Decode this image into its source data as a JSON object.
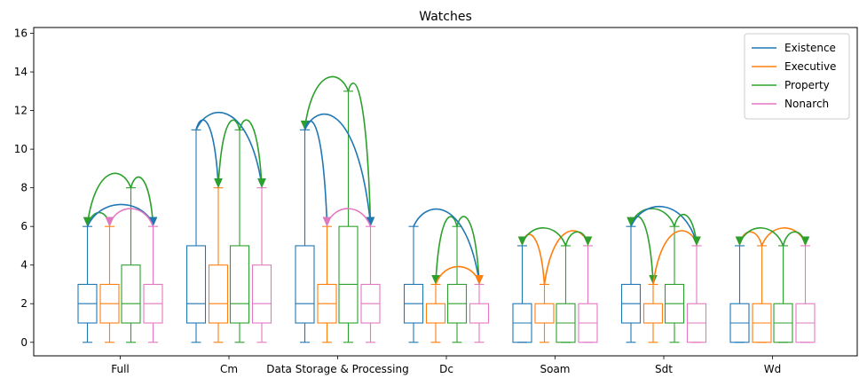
{
  "chart_data": {
    "type": "box",
    "title": "Watches",
    "xlabel": "",
    "ylabel": "",
    "ylim": [
      -0.7,
      16.3
    ],
    "yticks": [
      0,
      2,
      4,
      6,
      8,
      10,
      12,
      14,
      16
    ],
    "categories": [
      "Full",
      "Cm",
      "Data Storage & Processing",
      "Dc",
      "Soam",
      "Sdt",
      "Wd"
    ],
    "legend_position": "top-right",
    "series": [
      {
        "name": "Existence",
        "color": "#1f77b4",
        "boxes": [
          {
            "whislo": 0,
            "q1": 1,
            "med": 2,
            "q3": 3,
            "whishi": 6
          },
          {
            "whislo": 0,
            "q1": 1,
            "med": 2,
            "q3": 5,
            "whishi": 11
          },
          {
            "whislo": 0,
            "q1": 1,
            "med": 2,
            "q3": 5,
            "whishi": 11
          },
          {
            "whislo": 0,
            "q1": 1,
            "med": 2,
            "q3": 3,
            "whishi": 6
          },
          {
            "whislo": 0,
            "q1": 0,
            "med": 1,
            "q3": 2,
            "whishi": 5
          },
          {
            "whislo": 0,
            "q1": 1,
            "med": 2,
            "q3": 3,
            "whishi": 6
          },
          {
            "whislo": 0,
            "q1": 0,
            "med": 1,
            "q3": 2,
            "whishi": 5
          }
        ]
      },
      {
        "name": "Executive",
        "color": "#ff7f0e",
        "boxes": [
          {
            "whislo": 0,
            "q1": 1,
            "med": 2,
            "q3": 3,
            "whishi": 6
          },
          {
            "whislo": 0,
            "q1": 1,
            "med": 2,
            "q3": 4,
            "whishi": 8
          },
          {
            "whislo": 0,
            "q1": 1,
            "med": 2,
            "q3": 3,
            "whishi": 6
          },
          {
            "whislo": 0,
            "q1": 1,
            "med": 1,
            "q3": 2,
            "whishi": 3
          },
          {
            "whislo": 0,
            "q1": 1,
            "med": 1,
            "q3": 2,
            "whishi": 3
          },
          {
            "whislo": 0,
            "q1": 1,
            "med": 1,
            "q3": 2,
            "whishi": 3
          },
          {
            "whislo": 0,
            "q1": 0,
            "med": 1,
            "q3": 2,
            "whishi": 5
          }
        ]
      },
      {
        "name": "Property",
        "color": "#2ca02c",
        "boxes": [
          {
            "whislo": 0,
            "q1": 1,
            "med": 2,
            "q3": 4,
            "whishi": 8
          },
          {
            "whislo": 0,
            "q1": 1,
            "med": 2,
            "q3": 5,
            "whishi": 11
          },
          {
            "whislo": 0,
            "q1": 1,
            "med": 3,
            "q3": 6,
            "whishi": 13
          },
          {
            "whislo": 0,
            "q1": 1,
            "med": 2,
            "q3": 3,
            "whishi": 6
          },
          {
            "whislo": 0,
            "q1": 0,
            "med": 1,
            "q3": 2,
            "whishi": 5
          },
          {
            "whislo": 0,
            "q1": 1,
            "med": 2,
            "q3": 3,
            "whishi": 6
          },
          {
            "whislo": 0,
            "q1": 0,
            "med": 1,
            "q3": 2,
            "whishi": 5
          }
        ]
      },
      {
        "name": "Nonarch",
        "color": "#e377c2",
        "boxes": [
          {
            "whislo": 0,
            "q1": 1,
            "med": 2,
            "q3": 3,
            "whishi": 6
          },
          {
            "whislo": 0,
            "q1": 1,
            "med": 2,
            "q3": 4,
            "whishi": 8
          },
          {
            "whislo": 0,
            "q1": 1,
            "med": 2,
            "q3": 3,
            "whishi": 6
          },
          {
            "whislo": 0,
            "q1": 1,
            "med": 1,
            "q3": 2,
            "whishi": 3
          },
          {
            "whislo": 0,
            "q1": 0,
            "med": 1,
            "q3": 2,
            "whishi": 5
          },
          {
            "whislo": 0,
            "q1": 0,
            "med": 1,
            "q3": 2,
            "whishi": 5
          },
          {
            "whislo": 0,
            "q1": 0,
            "med": 1,
            "q3": 2,
            "whishi": 5
          }
        ]
      }
    ],
    "arrows": [
      {
        "category": "Full",
        "from": "Property",
        "to": "Existence",
        "color": "#2ca02c"
      },
      {
        "category": "Full",
        "from": "Property",
        "to": "Nonarch",
        "color": "#2ca02c"
      },
      {
        "category": "Full",
        "from": "Existence",
        "to": "Executive",
        "color": "#2ca02c"
      },
      {
        "category": "Full",
        "from": "Existence",
        "to": "Nonarch",
        "color": "#1f77b4"
      },
      {
        "category": "Full",
        "from": "Nonarch",
        "to": "Executive",
        "color": "#e377c2"
      },
      {
        "category": "Cm",
        "from": "Existence",
        "to": "Executive",
        "color": "#1f77b4"
      },
      {
        "category": "Cm",
        "from": "Existence",
        "to": "Nonarch",
        "color": "#1f77b4"
      },
      {
        "category": "Cm",
        "from": "Property",
        "to": "Executive",
        "color": "#2ca02c"
      },
      {
        "category": "Cm",
        "from": "Property",
        "to": "Nonarch",
        "color": "#2ca02c"
      },
      {
        "category": "Data Storage & Processing",
        "from": "Property",
        "to": "Existence",
        "color": "#2ca02c"
      },
      {
        "category": "Data Storage & Processing",
        "from": "Property",
        "to": "Nonarch",
        "color": "#2ca02c"
      },
      {
        "category": "Data Storage & Processing",
        "from": "Existence",
        "to": "Executive",
        "color": "#1f77b4"
      },
      {
        "category": "Data Storage & Processing",
        "from": "Existence",
        "to": "Nonarch",
        "color": "#1f77b4"
      },
      {
        "category": "Data Storage & Processing",
        "from": "Nonarch",
        "to": "Executive",
        "color": "#e377c2"
      },
      {
        "category": "Dc",
        "from": "Property",
        "to": "Executive",
        "color": "#2ca02c"
      },
      {
        "category": "Dc",
        "from": "Property",
        "to": "Nonarch",
        "color": "#2ca02c"
      },
      {
        "category": "Dc",
        "from": "Existence",
        "to": "Nonarch",
        "color": "#1f77b4"
      },
      {
        "category": "Dc",
        "from": "Executive",
        "to": "Nonarch",
        "color": "#ff7f0e"
      },
      {
        "category": "Soam",
        "from": "Executive",
        "to": "Existence",
        "color": "#ff7f0e"
      },
      {
        "category": "Soam",
        "from": "Executive",
        "to": "Nonarch",
        "color": "#ff7f0e"
      },
      {
        "category": "Soam",
        "from": "Property",
        "to": "Existence",
        "color": "#2ca02c"
      },
      {
        "category": "Soam",
        "from": "Property",
        "to": "Nonarch",
        "color": "#2ca02c"
      },
      {
        "category": "Sdt",
        "from": "Existence",
        "to": "Executive",
        "color": "#2ca02c"
      },
      {
        "category": "Sdt",
        "from": "Property",
        "to": "Existence",
        "color": "#2ca02c"
      },
      {
        "category": "Sdt",
        "from": "Existence",
        "to": "Nonarch",
        "color": "#1f77b4"
      },
      {
        "category": "Sdt",
        "from": "Executive",
        "to": "Nonarch",
        "color": "#ff7f0e"
      },
      {
        "category": "Sdt",
        "from": "Property",
        "to": "Nonarch",
        "color": "#2ca02c"
      },
      {
        "category": "Wd",
        "from": "Executive",
        "to": "Existence",
        "color": "#ff7f0e"
      },
      {
        "category": "Wd",
        "from": "Executive",
        "to": "Nonarch",
        "color": "#ff7f0e"
      },
      {
        "category": "Wd",
        "from": "Property",
        "to": "Existence",
        "color": "#2ca02c"
      },
      {
        "category": "Wd",
        "from": "Property",
        "to": "Nonarch",
        "color": "#2ca02c"
      }
    ]
  }
}
